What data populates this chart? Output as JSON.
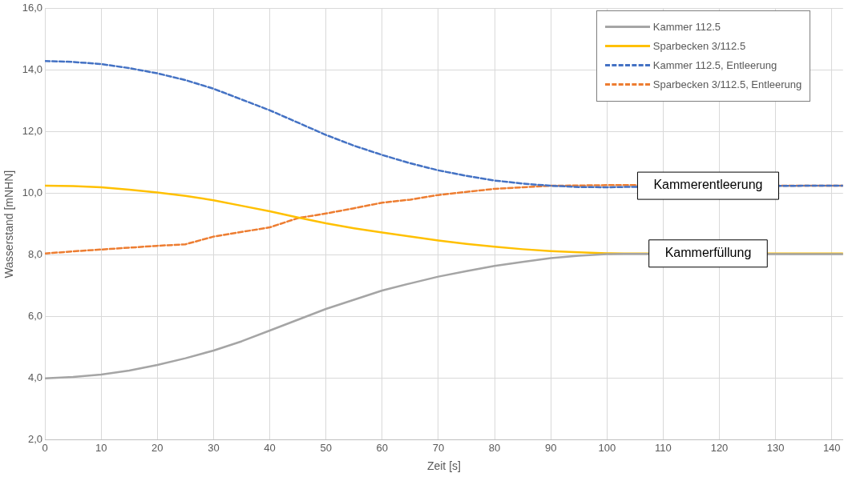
{
  "chart_data": {
    "type": "line",
    "xlabel": "Zeit [s]",
    "ylabel": "Wasserstand [mNHN]",
    "x": [
      0,
      5,
      10,
      15,
      20,
      25,
      30,
      35,
      40,
      45,
      50,
      55,
      60,
      65,
      70,
      75,
      80,
      85,
      90,
      95,
      100,
      103,
      135,
      142
    ],
    "series": [
      {
        "name": "Kammer 112.5",
        "color": "#a5a5a5",
        "line_style": "solid",
        "values": [
          4.0,
          4.04,
          4.12,
          4.25,
          4.43,
          4.65,
          4.9,
          5.2,
          5.55,
          5.9,
          6.25,
          6.55,
          6.85,
          7.08,
          7.3,
          7.48,
          7.65,
          7.78,
          7.9,
          7.98,
          8.03,
          8.04,
          8.03,
          8.03
        ]
      },
      {
        "name": "Sparbecken 3/112.5",
        "color": "#ffc000",
        "line_style": "solid",
        "values": [
          10.25,
          10.24,
          10.2,
          10.12,
          10.03,
          9.92,
          9.78,
          9.6,
          9.42,
          9.22,
          9.03,
          8.87,
          8.73,
          8.6,
          8.47,
          8.36,
          8.27,
          8.19,
          8.13,
          8.09,
          8.06,
          8.05,
          8.05,
          8.05
        ]
      },
      {
        "name": "Kammer 112.5, Entleerung",
        "color": "#4472c4",
        "line_style": "dashed",
        "values": [
          14.3,
          14.27,
          14.2,
          14.07,
          13.9,
          13.68,
          13.4,
          13.05,
          12.7,
          12.3,
          11.9,
          11.55,
          11.25,
          10.98,
          10.75,
          10.57,
          10.42,
          10.32,
          10.25,
          10.21,
          10.2,
          10.21,
          10.25,
          10.25
        ]
      },
      {
        "name": "Sparbecken 3/112.5, Entleerung",
        "color": "#ed7d31",
        "line_style": "dashed",
        "values": [
          8.05,
          8.12,
          8.18,
          8.24,
          8.3,
          8.35,
          8.6,
          8.75,
          8.9,
          9.2,
          9.35,
          9.52,
          9.7,
          9.8,
          9.95,
          10.05,
          10.15,
          10.2,
          10.25,
          10.26,
          10.27,
          10.27,
          10.25,
          10.25
        ]
      }
    ],
    "xlim": [
      0,
      142
    ],
    "xticks": [
      0,
      10,
      20,
      30,
      40,
      50,
      60,
      70,
      80,
      90,
      100,
      110,
      120,
      130,
      140
    ],
    "ylim": [
      2,
      16
    ],
    "yticks": [
      {
        "value": 2,
        "label": "2,0"
      },
      {
        "value": 4,
        "label": "4,0"
      },
      {
        "value": 6,
        "label": "6,0"
      },
      {
        "value": 8,
        "label": "8,0"
      },
      {
        "value": 10,
        "label": "10,0"
      },
      {
        "value": 12,
        "label": "12,0"
      },
      {
        "value": 14,
        "label": "14,0"
      },
      {
        "value": 16,
        "label": "16,0"
      }
    ],
    "grid": true,
    "legend": "top right",
    "marker": "none",
    "annotations": [
      {
        "text": "Kammerentleerung",
        "x": 118,
        "y": 10.25
      },
      {
        "text": "Kammerfüllung",
        "x": 118,
        "y": 8.05
      }
    ]
  }
}
